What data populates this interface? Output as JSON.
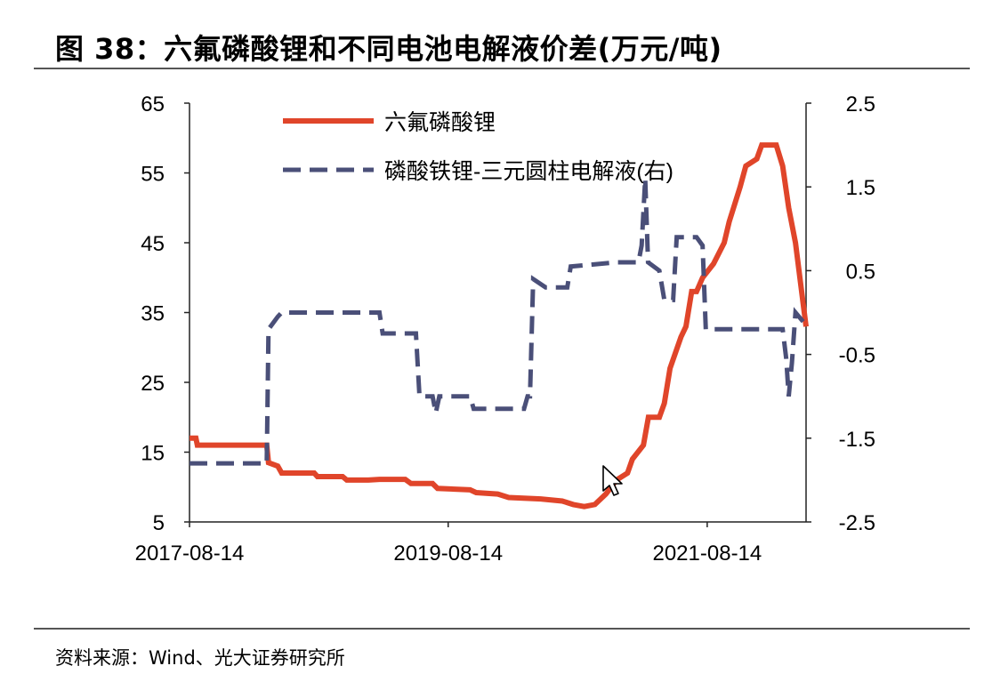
{
  "title": "图 38：六氟磷酸锂和不同电池电解液价差(万元/吨)",
  "source": "资料来源：Wind、光大证券研究所",
  "chart_data": {
    "type": "line",
    "title": "图 38：六氟磷酸锂和不同电池电解液价差(万元/吨)",
    "x_ticks": [
      "2017-08-14",
      "2019-08-14",
      "2021-08-14"
    ],
    "x_range": [
      "2017-08-14",
      "2022-05-20"
    ],
    "y_left": {
      "lim": [
        5,
        65
      ],
      "ticks": [
        "65",
        "55",
        "45",
        "35",
        "25",
        "15",
        "5"
      ]
    },
    "y_right": {
      "lim": [
        -2.5,
        2.5
      ],
      "ticks": [
        "2.5",
        "1.5",
        "0.5",
        "-0.5",
        "-1.5",
        "-2.5"
      ]
    },
    "grid": false,
    "legend_position": "top-center",
    "series": [
      {
        "name": "六氟磷酸锂",
        "axis": "left",
        "style": "solid",
        "color": "#e0452a",
        "points": [
          [
            "2017-08-14",
            17
          ],
          [
            "2017-09-01",
            17
          ],
          [
            "2017-09-05",
            16
          ],
          [
            "2018-03-20",
            16
          ],
          [
            "2018-03-25",
            13.5
          ],
          [
            "2018-04-20",
            13
          ],
          [
            "2018-05-01",
            12
          ],
          [
            "2018-08-01",
            12
          ],
          [
            "2018-08-10",
            11.5
          ],
          [
            "2018-10-20",
            11.5
          ],
          [
            "2018-11-01",
            11
          ],
          [
            "2019-01-01",
            11
          ],
          [
            "2019-02-01",
            11.1
          ],
          [
            "2019-04-15",
            11.1
          ],
          [
            "2019-05-01",
            10.5
          ],
          [
            "2019-07-01",
            10.5
          ],
          [
            "2019-07-15",
            9.8
          ],
          [
            "2019-10-15",
            9.6
          ],
          [
            "2019-11-01",
            9.2
          ],
          [
            "2020-01-01",
            9.0
          ],
          [
            "2020-02-01",
            8.5
          ],
          [
            "2020-05-01",
            8.3
          ],
          [
            "2020-07-01",
            8.0
          ],
          [
            "2020-08-01",
            7.5
          ],
          [
            "2020-09-01",
            7.2
          ],
          [
            "2020-10-01",
            7.5
          ],
          [
            "2020-11-01",
            9.0
          ],
          [
            "2020-12-01",
            11
          ],
          [
            "2021-01-01",
            12
          ],
          [
            "2021-01-15",
            14
          ],
          [
            "2021-02-15",
            16
          ],
          [
            "2021-03-01",
            20
          ],
          [
            "2021-04-01",
            20
          ],
          [
            "2021-04-15",
            22
          ],
          [
            "2021-05-01",
            27
          ],
          [
            "2021-06-01",
            31.5
          ],
          [
            "2021-06-15",
            33
          ],
          [
            "2021-07-01",
            38
          ],
          [
            "2021-07-15",
            38
          ],
          [
            "2021-08-01",
            40
          ],
          [
            "2021-09-01",
            42
          ],
          [
            "2021-10-01",
            45
          ],
          [
            "2021-10-15",
            48
          ],
          [
            "2021-11-15",
            53
          ],
          [
            "2021-12-01",
            56
          ],
          [
            "2022-01-01",
            57
          ],
          [
            "2022-01-15",
            59
          ],
          [
            "2022-02-25",
            59
          ],
          [
            "2022-03-15",
            56
          ],
          [
            "2022-04-01",
            50
          ],
          [
            "2022-04-20",
            45
          ],
          [
            "2022-05-15",
            35
          ],
          [
            "2022-05-20",
            33
          ]
        ]
      },
      {
        "name": "磷酸铁锂-三元圆柱电解液(右)",
        "axis": "right",
        "style": "dashed",
        "color": "#4a4f78",
        "points": [
          [
            "2017-08-14",
            -1.8
          ],
          [
            "2018-03-20",
            -1.8
          ],
          [
            "2018-03-25",
            -0.2
          ],
          [
            "2018-04-20",
            -0.05
          ],
          [
            "2018-05-01",
            0.0
          ],
          [
            "2019-02-01",
            0.0
          ],
          [
            "2019-02-10",
            -0.25
          ],
          [
            "2019-05-15",
            -0.25
          ],
          [
            "2019-05-25",
            -1.0
          ],
          [
            "2019-07-01",
            -1.0
          ],
          [
            "2019-07-10",
            -1.2
          ],
          [
            "2019-07-20",
            -1.0
          ],
          [
            "2019-10-15",
            -1.0
          ],
          [
            "2019-10-25",
            -1.15
          ],
          [
            "2020-03-15",
            -1.15
          ],
          [
            "2020-03-25",
            -1.0
          ],
          [
            "2020-04-01",
            -1.0
          ],
          [
            "2020-04-10",
            0.4
          ],
          [
            "2020-05-15",
            0.3
          ],
          [
            "2020-07-15",
            0.3
          ],
          [
            "2020-07-25",
            0.55
          ],
          [
            "2020-12-01",
            0.6
          ],
          [
            "2021-02-01",
            0.6
          ],
          [
            "2021-02-10",
            0.8
          ],
          [
            "2021-02-20",
            1.6
          ],
          [
            "2021-02-28",
            0.6
          ],
          [
            "2021-04-01",
            0.5
          ],
          [
            "2021-04-15",
            0.15
          ],
          [
            "2021-05-10",
            0.15
          ],
          [
            "2021-05-20",
            0.9
          ],
          [
            "2021-07-15",
            0.9
          ],
          [
            "2021-08-01",
            0.8
          ],
          [
            "2021-08-10",
            -0.2
          ],
          [
            "2022-03-15",
            -0.2
          ],
          [
            "2022-03-25",
            -0.55
          ],
          [
            "2022-04-01",
            -1.0
          ],
          [
            "2022-04-10",
            -0.6
          ],
          [
            "2022-04-20",
            0.0
          ],
          [
            "2022-05-20",
            -0.15
          ]
        ]
      }
    ]
  }
}
